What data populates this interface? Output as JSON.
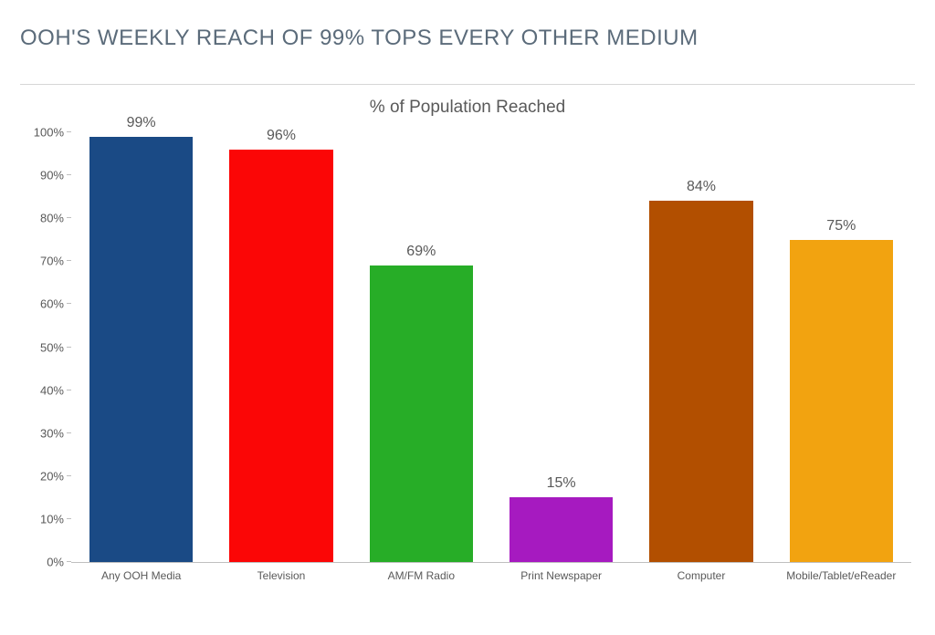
{
  "headline": "OOH'S WEEKLY REACH OF 99% TOPS EVERY OTHER MEDIUM",
  "chart": {
    "type": "bar",
    "title": "% of Population Reached",
    "title_fontsize": 19,
    "title_color": "#595959",
    "headline_color": "#5b6b7a",
    "headline_fontsize": 24,
    "background_color": "#ffffff",
    "axis_color": "#bfbfbf",
    "tick_label_color": "#595959",
    "tick_label_fontsize": 13,
    "xcat_fontsize": 12,
    "data_label_fontsize": 16,
    "ylim": [
      0,
      100
    ],
    "ytick_step": 10,
    "ytick_suffix": "%",
    "bar_width_ratio": 0.74,
    "categories": [
      "Any OOH Media",
      "Television",
      "AM/FM Radio",
      "Print Newspaper",
      "Computer",
      "Mobile/Tablet/eReader"
    ],
    "values": [
      99,
      96,
      69,
      15,
      84,
      75
    ],
    "value_suffix": "%",
    "bar_colors": [
      "#1a4a85",
      "#fb0606",
      "#27ad27",
      "#a61ac0",
      "#b24f00",
      "#f2a310"
    ],
    "divider_color": "#d6d6d6"
  }
}
